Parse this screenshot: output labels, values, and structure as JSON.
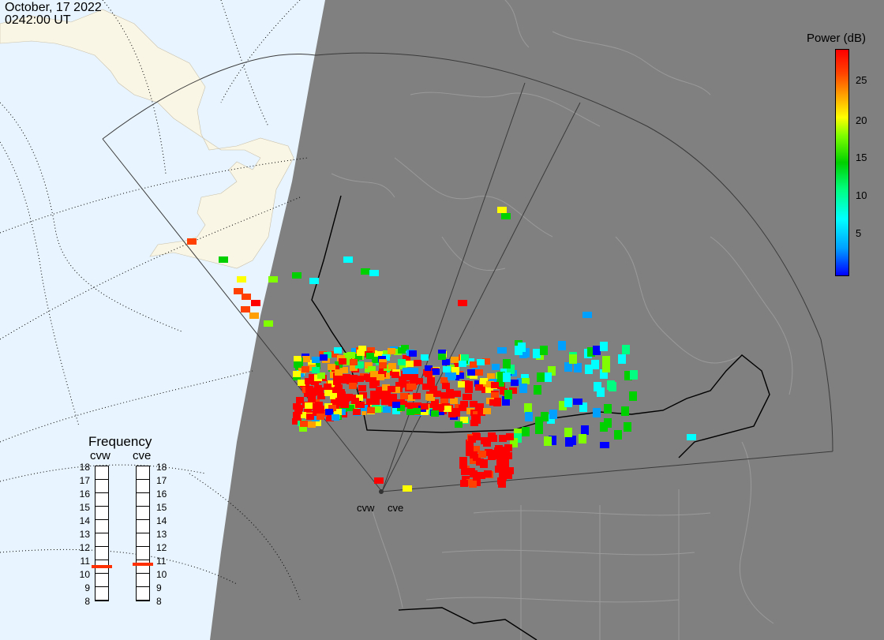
{
  "header": {
    "date": "October, 17 2022",
    "time": "0242:00 UT"
  },
  "colorbar": {
    "title": "Power (dB)",
    "ticks": [
      "25",
      "20",
      "15",
      "10",
      "5"
    ],
    "colors": [
      "#0000ff",
      "#00a0ff",
      "#00ffff",
      "#00ff80",
      "#00d000",
      "#80ff00",
      "#ffff00",
      "#ffa000",
      "#ff4000",
      "#ff0000"
    ]
  },
  "frequency": {
    "title": "Frequency",
    "radars": [
      "cvw",
      "cve"
    ],
    "levels": [
      "18",
      "17",
      "16",
      "15",
      "14",
      "13",
      "12",
      "11",
      "10",
      "9",
      "8"
    ],
    "current": {
      "cvw": 10.7,
      "cve": 10.8
    }
  },
  "map": {
    "radar_labels": [
      "cvw",
      "cve"
    ],
    "day_color": "#e8f4ff",
    "night_color": "#808080",
    "land_day_color": "#faf6e6"
  }
}
